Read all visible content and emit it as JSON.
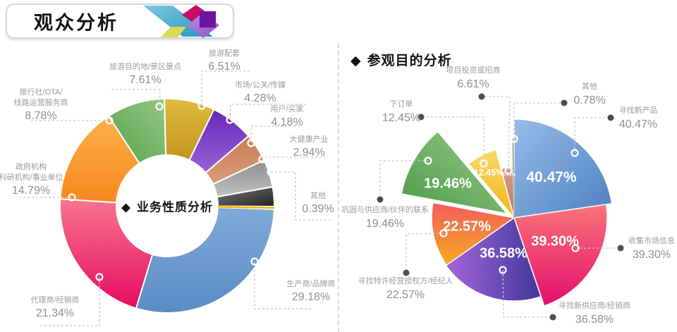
{
  "header": {
    "title": "观众分析"
  },
  "icons": {
    "diamond": "◆"
  },
  "chart_data": [
    {
      "type": "pie",
      "variant": "donut",
      "title": "业务性质分析",
      "unit": "%",
      "legend_position": "callout-labels",
      "slices": [
        {
          "label": "生产商/品牌商",
          "label_lines": [
            "生产商/品牌商"
          ],
          "value": 29.18,
          "value_label": "29.18%",
          "colors": [
            "#7fa9d9",
            "#5a8cc4"
          ]
        },
        {
          "label": "代理商/经销商",
          "label_lines": [
            "代理商/经销商"
          ],
          "value": 21.34,
          "value_label": "21.34%",
          "colors": [
            "#f8758d",
            "#e60c62"
          ]
        },
        {
          "label": "政府机构 科研机构/事业单位",
          "label_lines": [
            "政府机构",
            "科研机构/事业单位"
          ],
          "value": 14.79,
          "value_label": "14.79%",
          "colors": [
            "#fcb14b",
            "#f8871f"
          ]
        },
        {
          "label": "旅行社/OTA/线路运营服务商",
          "label_lines": [
            "旅行社/OTA/",
            "线路运营服务商"
          ],
          "value": 8.78,
          "value_label": "8.78%",
          "colors": [
            "#96c884",
            "#58a04c"
          ]
        },
        {
          "label": "旅游目的地/景区景点",
          "label_lines": [
            "旅游目的地/景区景点"
          ],
          "value": 7.61,
          "value_label": "7.61%",
          "colors": [
            "#e0ba40",
            "#c3961c"
          ]
        },
        {
          "label": "旅游配套",
          "label_lines": [
            "旅游配套"
          ],
          "value": 6.51,
          "value_label": "6.51%",
          "colors": [
            "#6428b8",
            "#9b62d8"
          ]
        },
        {
          "label": "市场/公关/传媒",
          "label_lines": [
            "市场/公关/传媒"
          ],
          "value": 4.28,
          "value_label": "4.28%",
          "colors": [
            "#ca7e54",
            "#d99b7c"
          ]
        },
        {
          "label": "用户/买家",
          "label_lines": [
            "用户/买家"
          ],
          "value": 4.18,
          "value_label": "4.18%",
          "colors": [
            "#8c8c8c",
            "#c2c2c2"
          ]
        },
        {
          "label": "大健康产业",
          "label_lines": [
            "大健康产业"
          ],
          "value": 2.94,
          "value_label": "2.94%",
          "colors": [
            "#777777",
            "#222222"
          ]
        },
        {
          "label": "其他",
          "label_lines": [
            "其他"
          ],
          "value": 0.39,
          "value_label": "0.39%",
          "colors": [
            "#f0b400",
            "#f0b400"
          ]
        }
      ]
    },
    {
      "type": "pie",
      "variant": "rose",
      "title": "参观目的分析",
      "unit": "%",
      "legend_position": "callout-labels",
      "slices": [
        {
          "label": "寻找新产品",
          "value": 40.47,
          "value_label": "40.47%",
          "colors": [
            "#97bce8",
            "#4c80c1"
          ]
        },
        {
          "label": "收集市场信息",
          "value": 39.3,
          "value_label": "39.30%",
          "colors": [
            "#fb7478",
            "#e20e6c"
          ]
        },
        {
          "label": "寻找新供应商/经销商",
          "value": 36.58,
          "value_label": "36.58%",
          "colors": [
            "#a665da",
            "#40389a"
          ]
        },
        {
          "label": "寻找特许经营授权方/经纪人",
          "value": 22.57,
          "value_label": "22.57%",
          "colors": [
            "#f25d5c",
            "#f9a91e"
          ]
        },
        {
          "label": "巩固与供应商/伙伴的联系",
          "value": 19.46,
          "value_label": "19.46%",
          "colors": [
            "#9acb86",
            "#4a9a49"
          ]
        },
        {
          "label": "下订单",
          "value": 12.45,
          "value_label": "12.45%",
          "colors": [
            "#f9d96e",
            "#f1b513"
          ]
        },
        {
          "label": "项目投资或招商",
          "value": 6.61,
          "value_label": "6.61%",
          "colors": [
            "#d2a08c",
            "#b5765f"
          ]
        },
        {
          "label": "其他",
          "value": 0.78,
          "value_label": "0.78%",
          "colors": [
            "#b5b5b5",
            "#b5b5b5"
          ]
        }
      ]
    }
  ]
}
